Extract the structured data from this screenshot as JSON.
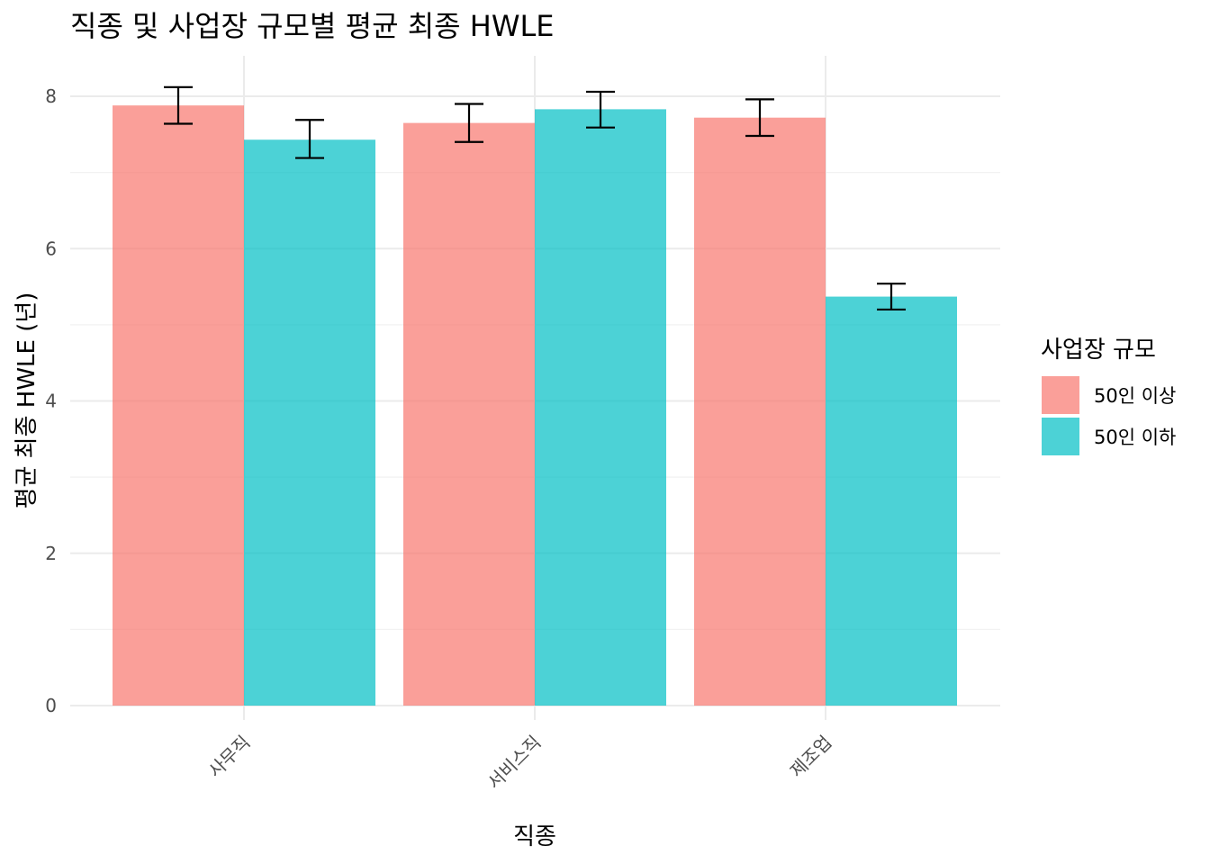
{
  "chart_data": {
    "type": "bar",
    "title": "직종 및 사업장 규모별 평균 최종 HWLE",
    "xlabel": "직종",
    "ylabel": "평균 최종 HWLE (년)",
    "categories": [
      "사무직",
      "서비스직",
      "제조업"
    ],
    "series": [
      {
        "name": "50인 이상",
        "color": "#F8766D",
        "values": [
          7.88,
          7.65,
          7.72
        ],
        "err_low": [
          7.64,
          7.4,
          7.48
        ],
        "err_high": [
          8.12,
          7.9,
          7.96
        ]
      },
      {
        "name": "50인 이하",
        "color": "#00BFC4",
        "values": [
          7.43,
          7.83,
          5.37
        ],
        "err_low": [
          7.19,
          7.59,
          5.2
        ],
        "err_high": [
          7.69,
          8.06,
          5.54
        ]
      }
    ],
    "ylim": [
      0,
      8.5
    ],
    "yticks": [
      0,
      2,
      4,
      6,
      8
    ],
    "legend": {
      "title": "사업장 규모",
      "position": "right"
    },
    "grid": true
  }
}
